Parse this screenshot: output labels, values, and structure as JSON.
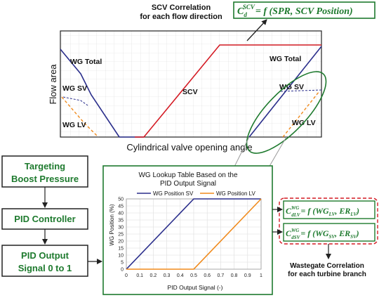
{
  "top_chart": {
    "caption_line1": "SCV Correlation",
    "caption_line2": "for each flow direction",
    "formula_lhs_main": "C",
    "formula_lhs_sub": "d",
    "formula_lhs_sup": "SCV",
    "formula_rhs": "= f (SPR, SCV Position)",
    "y_label": "Flow area",
    "x_label": "Cylindrical valve opening angle",
    "labels": {
      "wg_total_left": "WG Total",
      "wg_sv_left": "WG SV",
      "wg_lv_left": "WG LV",
      "scv": "SCV",
      "wg_total_right": "WG Total",
      "wg_sv_right": "WG SV",
      "wg_lv_right": "WG LV"
    },
    "colors": {
      "wg_total": "#2b2f8c",
      "scv": "#d41b24",
      "wg_lv": "#f08a1c",
      "highlight": "#1e7a2e"
    }
  },
  "flow": {
    "targeting_line1": "Targeting",
    "targeting_line2": "Boost Pressure",
    "pid_controller": "PID Controller",
    "pid_output_line1": "PID Output",
    "pid_output_line2": "Signal 0 to 1",
    "text_color": "#1e7a2e"
  },
  "lookup_chart": {
    "title_line1": "WG Lookup Table Based on the",
    "title_line2": "PID Output Signal",
    "y_label": "WG Position (%)",
    "x_label": "PID Output Signal (-)",
    "legend_sv": "WG Position SV",
    "legend_lv": "WG Position LV"
  },
  "correlation": {
    "lv_lhs_main": "C",
    "lv_lhs_sup": "WG",
    "lv_lhs_sub": "dLV",
    "lv_rhs": "= f (WG",
    "lv_rhs_sub1": "LV",
    "lv_rhs_mid": ", ER",
    "lv_rhs_sub2": "LV",
    "lv_rhs_end": ")",
    "sv_lhs_main": "C",
    "sv_lhs_sup": "WG",
    "sv_lhs_sub": "dSV",
    "sv_rhs": "= f (WG",
    "sv_rhs_sub1": "SV",
    "sv_rhs_mid": ", ER",
    "sv_rhs_sub2": "SV",
    "sv_rhs_end": ")",
    "caption_line1": "Wastegate Correlation",
    "caption_line2": "for each turbine branch"
  },
  "chart_data": {
    "type": "line",
    "title": "WG Lookup Table Based on the PID Output Signal",
    "xlabel": "PID Output Signal (-)",
    "ylabel": "WG Position (%)",
    "xlim": [
      0,
      1
    ],
    "ylim": [
      0,
      50
    ],
    "x_ticks": [
      0,
      0.1,
      0.2,
      0.3,
      0.4,
      0.5,
      0.6,
      0.7,
      0.8,
      0.9,
      1
    ],
    "y_ticks": [
      0,
      5,
      10,
      15,
      20,
      25,
      30,
      35,
      40,
      45,
      50
    ],
    "grid": true,
    "legend": "top",
    "series": [
      {
        "name": "WG Position SV",
        "color": "#2b2f8c",
        "x": [
          0,
          0.5,
          1
        ],
        "y": [
          0,
          50,
          50
        ]
      },
      {
        "name": "WG Position LV",
        "color": "#f08a1c",
        "x": [
          0,
          0.5,
          1
        ],
        "y": [
          0,
          0,
          50
        ]
      }
    ]
  }
}
